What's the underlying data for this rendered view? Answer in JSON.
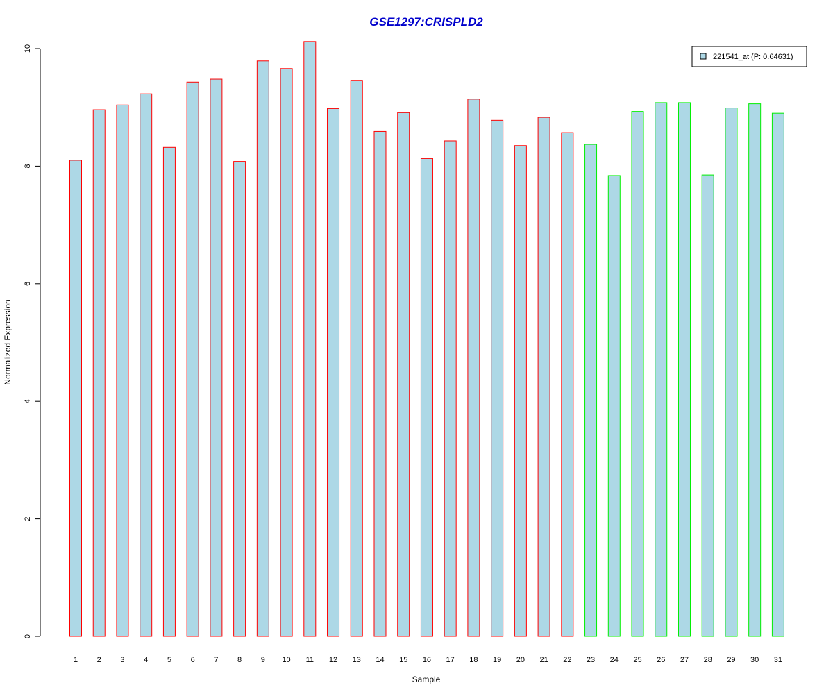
{
  "chart_data": {
    "type": "bar",
    "title": "GSE1297:CRISPLD2",
    "xlabel": "Sample",
    "ylabel": "Normalized Expression",
    "ylim": [
      0,
      10
    ],
    "yticks": [
      0,
      2,
      4,
      6,
      8,
      10
    ],
    "grid": false,
    "legend_position": "top-right",
    "categories": [
      "1",
      "2",
      "3",
      "4",
      "5",
      "6",
      "7",
      "8",
      "9",
      "10",
      "11",
      "12",
      "13",
      "14",
      "15",
      "16",
      "17",
      "18",
      "19",
      "20",
      "21",
      "22",
      "23",
      "24",
      "25",
      "26",
      "27",
      "28",
      "29",
      "30",
      "31"
    ],
    "series": [
      {
        "name": "221541_at (P: 0.64631)",
        "values": [
          8.1,
          8.96,
          9.04,
          9.23,
          8.32,
          9.43,
          9.48,
          8.08,
          9.79,
          9.66,
          10.12,
          8.98,
          9.46,
          8.59,
          8.91,
          8.13,
          8.43,
          9.14,
          8.78,
          8.35,
          8.83,
          8.57,
          8.37,
          7.84,
          8.93,
          9.08,
          9.08,
          7.85,
          8.99,
          9.06,
          8.9
        ]
      }
    ],
    "groups": [
      "a",
      "a",
      "a",
      "a",
      "a",
      "a",
      "a",
      "a",
      "a",
      "a",
      "a",
      "a",
      "a",
      "a",
      "a",
      "a",
      "a",
      "a",
      "a",
      "a",
      "a",
      "a",
      "b",
      "b",
      "b",
      "b",
      "b",
      "b",
      "b",
      "b",
      "b"
    ]
  },
  "colors": {
    "title": "#0000cc",
    "bar_fill": "#add8e6",
    "group_a_border": "#ff0000",
    "group_b_border": "#00ee00",
    "axis": "#000000"
  }
}
